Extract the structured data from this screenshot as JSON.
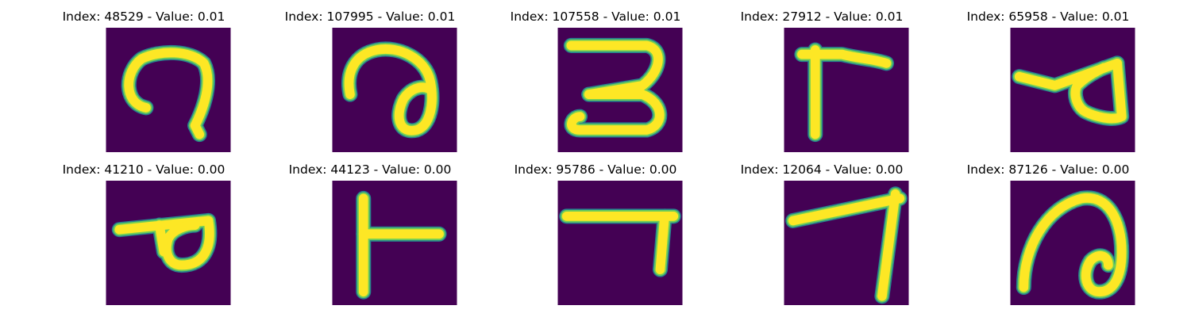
{
  "colors": {
    "background": "#440154",
    "stroke_outer": "#26828e",
    "stroke_mid": "#6ece58",
    "stroke_core": "#fde725"
  },
  "panels": [
    {
      "title": "Index: 48529 - Value: 0.01",
      "glyph": "hook-curl"
    },
    {
      "title": "Index: 107995 - Value: 0.01",
      "glyph": "loop-curl"
    },
    {
      "title": "Index: 107558 - Value: 0.01",
      "glyph": "three-shape"
    },
    {
      "title": "Index: 27912 - Value: 0.01",
      "glyph": "gamma-shape"
    },
    {
      "title": "Index: 65958 - Value: 0.01",
      "glyph": "looped-flag"
    },
    {
      "title": "Index: 41210 - Value: 0.00",
      "glyph": "p-loop"
    },
    {
      "title": "Index: 44123 - Value: 0.00",
      "glyph": "t-shape"
    },
    {
      "title": "Index: 95786 - Value: 0.00",
      "glyph": "seven-short"
    },
    {
      "title": "Index: 12064 - Value: 0.00",
      "glyph": "seven-long"
    },
    {
      "title": "Index: 87126 - Value: 0.00",
      "glyph": "swirl-loop"
    }
  ]
}
